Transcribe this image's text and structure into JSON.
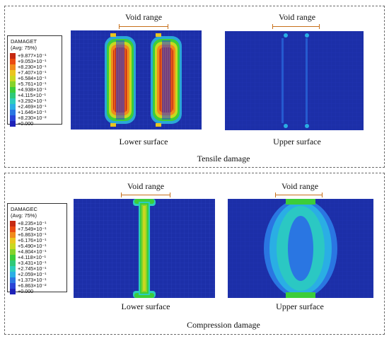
{
  "tensile": {
    "legend": {
      "variable": "DAMAGET",
      "avg": "(Avg: 75%)",
      "entries": [
        {
          "label": "+9.877×10⁻¹",
          "color": "#c62a12"
        },
        {
          "label": "+9.053×10⁻¹",
          "color": "#ea4a12"
        },
        {
          "label": "+8.230×10⁻¹",
          "color": "#f08a1c"
        },
        {
          "label": "+7.407×10⁻¹",
          "color": "#eac51e"
        },
        {
          "label": "+6.584×10⁻¹",
          "color": "#c8d820"
        },
        {
          "label": "+5.761×10⁻¹",
          "color": "#86d22a"
        },
        {
          "label": "+4.938×10⁻¹",
          "color": "#3ccd3a"
        },
        {
          "label": "+4.115×10⁻¹",
          "color": "#2ec97a"
        },
        {
          "label": "+3.292×10⁻¹",
          "color": "#2ccdbd"
        },
        {
          "label": "+2.469×10⁻¹",
          "color": "#2aaee4"
        },
        {
          "label": "+1.646×10⁻¹",
          "color": "#2a76e2"
        },
        {
          "label": "+8.230×10⁻²",
          "color": "#2a44d6"
        },
        {
          "label": "+0.000",
          "color": "#1e22b8"
        }
      ]
    },
    "void_label": "Void range",
    "lower_caption": "Lower surface",
    "upper_caption": "Upper surface",
    "panel_caption": "Tensile damage"
  },
  "compression": {
    "legend": {
      "variable": "DAMAGEC",
      "avg": "(Avg: 75%)",
      "entries": [
        {
          "label": "+8.235×10⁻¹",
          "color": "#c62a12"
        },
        {
          "label": "+7.549×10⁻¹",
          "color": "#ea4a12"
        },
        {
          "label": "+6.863×10⁻¹",
          "color": "#f08a1c"
        },
        {
          "label": "+6.176×10⁻¹",
          "color": "#eac51e"
        },
        {
          "label": "+5.490×10⁻¹",
          "color": "#c8d820"
        },
        {
          "label": "+4.804×10⁻¹",
          "color": "#86d22a"
        },
        {
          "label": "+4.118×10⁻¹",
          "color": "#3ccd3a"
        },
        {
          "label": "+3.431×10⁻¹",
          "color": "#2ec97a"
        },
        {
          "label": "+2.745×10⁻¹",
          "color": "#2ccdbd"
        },
        {
          "label": "+2.059×10⁻¹",
          "color": "#2aaee4"
        },
        {
          "label": "+1.373×10⁻¹",
          "color": "#2a76e2"
        },
        {
          "label": "+6.863×10⁻²",
          "color": "#2a44d6"
        },
        {
          "label": "+0.000",
          "color": "#1e22b8"
        }
      ]
    },
    "void_label": "Void range",
    "lower_caption": "Lower surface",
    "upper_caption": "Upper surface",
    "panel_caption": "Compression damage"
  },
  "colors": {
    "plate_base": "#1c2fa8",
    "range_line": "#c8701a",
    "panel_border": "#6b6b6b"
  }
}
